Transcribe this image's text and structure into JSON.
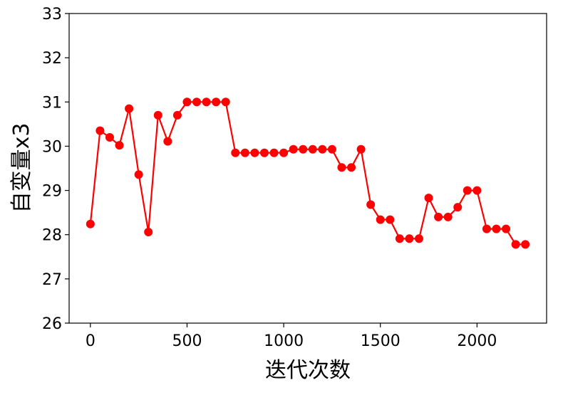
{
  "chart_data": {
    "type": "line",
    "title": "",
    "xlabel": "迭代次数",
    "ylabel": "自变量x3",
    "xlim": [
      -110,
      2360
    ],
    "ylim": [
      26,
      33
    ],
    "xticks": [
      0,
      500,
      1000,
      1500,
      2000
    ],
    "yticks": [
      26,
      27,
      28,
      29,
      30,
      31,
      32,
      33
    ],
    "grid": false,
    "legend": "none",
    "series": [
      {
        "color": "#ff0000",
        "marker": "circle",
        "x": [
          0,
          50,
          100,
          150,
          200,
          250,
          300,
          350,
          400,
          450,
          500,
          550,
          600,
          650,
          700,
          750,
          800,
          850,
          900,
          950,
          1000,
          1050,
          1100,
          1150,
          1200,
          1250,
          1300,
          1350,
          1400,
          1450,
          1500,
          1550,
          1600,
          1650,
          1700,
          1750,
          1800,
          1850,
          1900,
          1950,
          2000,
          2050,
          2100,
          2150,
          2200,
          2250
        ],
        "y": [
          28.24,
          30.35,
          30.2,
          30.02,
          30.85,
          29.36,
          28.06,
          30.7,
          30.11,
          30.7,
          31.0,
          31.0,
          31.0,
          31.0,
          31.0,
          29.85,
          29.85,
          29.85,
          29.85,
          29.85,
          29.85,
          29.93,
          29.93,
          29.93,
          29.93,
          29.93,
          29.52,
          29.52,
          29.93,
          28.68,
          28.34,
          28.34,
          27.91,
          27.91,
          27.91,
          28.83,
          28.4,
          28.4,
          28.62,
          29.0,
          29.0,
          28.13,
          28.13,
          28.13,
          27.78,
          27.78
        ]
      }
    ]
  }
}
